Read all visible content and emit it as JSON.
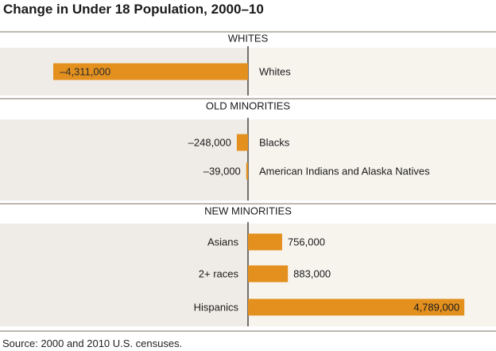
{
  "title": "Change in Under 18 Population, 2000–10",
  "source": "Source: 2000 and 2010 U.S. censuses.",
  "colors": {
    "bar": "#e3901f",
    "header_line": "#a9a195",
    "background_left": "#efece7",
    "background_right": "#f7f4ee"
  },
  "chart_data": {
    "type": "bar",
    "orientation": "horizontal",
    "axis": "diverging",
    "groups": [
      {
        "name": "WHITES",
        "bars": [
          {
            "category": "Whites",
            "value": -4311000,
            "label": "–4,311,000"
          }
        ]
      },
      {
        "name": "OLD MINORITIES",
        "bars": [
          {
            "category": "Blacks",
            "value": -248000,
            "label": "–248,000"
          },
          {
            "category": "American Indians and Alaska Natives",
            "value": -39000,
            "label": "–39,000"
          }
        ]
      },
      {
        "name": "NEW MINORITIES",
        "bars": [
          {
            "category": "Asians",
            "value": 756000,
            "label": "756,000"
          },
          {
            "category": "2+ races",
            "value": 883000,
            "label": "883,000"
          },
          {
            "category": "Hispanics",
            "value": 4789000,
            "label": "4,789,000"
          }
        ]
      }
    ]
  }
}
